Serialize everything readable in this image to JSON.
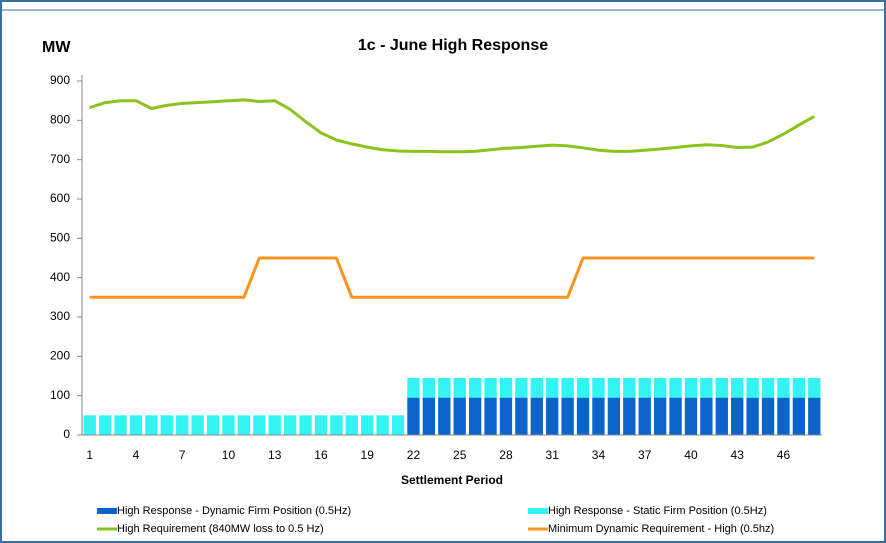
{
  "chart_data": {
    "type": "bar",
    "title": "1c - June High Response",
    "y_label": "MW",
    "x_label": "Settlement Period",
    "categories": [
      "1",
      null,
      null,
      "4",
      null,
      null,
      "7",
      null,
      null,
      "10",
      null,
      null,
      "13",
      null,
      null,
      "16",
      null,
      null,
      "19",
      null,
      null,
      "22",
      null,
      null,
      "25",
      null,
      null,
      "28",
      null,
      null,
      "31",
      null,
      null,
      "34",
      null,
      null,
      "37",
      null,
      null,
      "40",
      null,
      null,
      "43",
      null,
      null,
      "46",
      null,
      null
    ],
    "ylim": [
      0,
      900
    ],
    "yticks": [
      0,
      100,
      200,
      300,
      400,
      500,
      600,
      700,
      800,
      900
    ],
    "grid": false,
    "legend": "bottom",
    "series": [
      {
        "name": "High Response - Dynamic Firm Position (0.5Hz)",
        "type": "bar",
        "stack": true,
        "color": "#0c63c9",
        "values": [
          0,
          0,
          0,
          0,
          0,
          0,
          0,
          0,
          0,
          0,
          0,
          0,
          0,
          0,
          0,
          0,
          0,
          0,
          0,
          0,
          0,
          95,
          95,
          95,
          95,
          95,
          95,
          95,
          95,
          95,
          95,
          95,
          95,
          95,
          95,
          95,
          95,
          95,
          95,
          95,
          95,
          95,
          95,
          95,
          95,
          95,
          95,
          95
        ]
      },
      {
        "name": "High Response - Static Firm Position (0.5Hz)",
        "type": "bar",
        "stack": true,
        "color": "#33f3f3",
        "values": [
          50,
          50,
          50,
          50,
          50,
          50,
          50,
          50,
          50,
          50,
          50,
          50,
          50,
          50,
          50,
          50,
          50,
          50,
          50,
          50,
          50,
          50,
          50,
          50,
          50,
          50,
          50,
          50,
          50,
          50,
          50,
          50,
          50,
          50,
          50,
          50,
          50,
          50,
          50,
          50,
          50,
          50,
          50,
          50,
          50,
          50,
          50,
          50
        ]
      },
      {
        "name": "High Requirement (840MW loss to 0.5 Hz)",
        "type": "line",
        "color": "#8cc21e",
        "values": [
          832,
          845,
          850,
          850,
          830,
          838,
          843,
          845,
          847,
          850,
          852,
          848,
          850,
          828,
          797,
          768,
          750,
          740,
          732,
          725,
          722,
          721,
          721,
          720,
          720,
          721,
          725,
          729,
          731,
          734,
          737,
          735,
          730,
          724,
          721,
          721,
          724,
          727,
          731,
          735,
          738,
          736,
          731,
          732,
          745,
          765,
          788,
          810
        ]
      },
      {
        "name": "Minimum Dynamic Requirement - High (0.5hz)",
        "type": "line",
        "color": "#f7941d",
        "values": [
          350,
          350,
          350,
          350,
          350,
          350,
          350,
          350,
          350,
          350,
          350,
          450,
          450,
          450,
          450,
          450,
          450,
          350,
          350,
          350,
          350,
          350,
          350,
          350,
          350,
          350,
          350,
          350,
          350,
          350,
          350,
          350,
          450,
          450,
          450,
          450,
          450,
          450,
          450,
          450,
          450,
          450,
          450,
          450,
          450,
          450,
          450,
          450
        ]
      }
    ]
  }
}
